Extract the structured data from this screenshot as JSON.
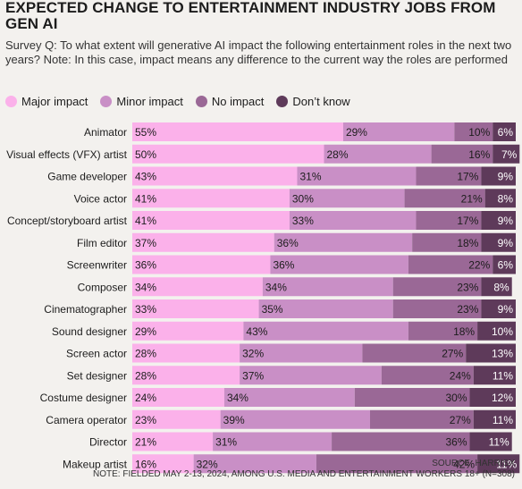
{
  "header": {
    "title": "EXPECTED CHANGE TO ENTERTAINMENT INDUSTRY JOBS FROM GEN AI",
    "subtitle": "Survey Q: To what extent will generative AI impact the following entertainment roles in the next two years? Note: In this case, impact means any difference to the current way the roles are performed"
  },
  "footer": {
    "source": "SOURCE: HARRISX",
    "note": "NOTE: FIELDED MAY 2-13, 2024, AMONG U.S. MEDIA AND ENTERTAINMENT WORKERS 18+ (N=308)"
  },
  "chart_data": {
    "type": "bar",
    "orientation": "horizontal",
    "stacked": true,
    "unit": "%",
    "xlim": [
      0,
      100
    ],
    "legend_position": "top-left",
    "categories": [
      "Animator",
      "Visual effects (VFX) artist",
      "Game developer",
      "Voice actor",
      "Concept/storyboard artist",
      "Film editor",
      "Screenwriter",
      "Composer",
      "Cinematographer",
      "Sound designer",
      "Screen actor",
      "Set designer",
      "Costume designer",
      "Camera operator",
      "Director",
      "Makeup artist"
    ],
    "series": [
      {
        "name": "Major impact",
        "color": "#fbb1ea",
        "values": [
          55,
          50,
          43,
          41,
          41,
          37,
          36,
          34,
          33,
          29,
          28,
          28,
          24,
          23,
          21,
          16
        ]
      },
      {
        "name": "Minor impact",
        "color": "#c98fc6",
        "values": [
          29,
          28,
          31,
          30,
          33,
          36,
          36,
          34,
          35,
          43,
          32,
          37,
          34,
          39,
          31,
          32
        ]
      },
      {
        "name": "No impact",
        "color": "#9a6896",
        "values": [
          10,
          16,
          17,
          21,
          17,
          18,
          22,
          23,
          23,
          18,
          27,
          24,
          30,
          27,
          36,
          42
        ]
      },
      {
        "name": "Don’t know",
        "color": "#5e3a5a",
        "values": [
          6,
          7,
          9,
          8,
          9,
          9,
          6,
          8,
          9,
          10,
          13,
          11,
          12,
          11,
          11,
          11
        ]
      }
    ]
  }
}
